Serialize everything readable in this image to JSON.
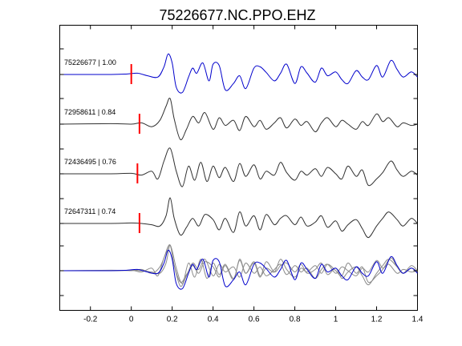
{
  "chart_data": {
    "type": "line",
    "title": "75226677.NC.PPO.EHZ",
    "xlabel": "",
    "ylabel": "",
    "xlim": [
      -0.35,
      1.4
    ],
    "xticks": [
      "-0.2",
      "0",
      "0.2",
      "0.4",
      "0.6",
      "0.8",
      "1",
      "1.2",
      "1.4"
    ],
    "xtick_values": [
      -0.2,
      0,
      0.2,
      0.4,
      0.6,
      0.8,
      1.0,
      1.2,
      1.4
    ],
    "grid": false,
    "colors": {
      "reference": "#0000cc",
      "trace": "#303030",
      "pick": "#ff0000",
      "overlay": "#8c8c8c"
    },
    "series": [
      {
        "label": "75226677 | 1.00",
        "color": "#0000cc",
        "pick_time": 0.0,
        "x": [
          -0.35,
          -0.1,
          -0.02,
          0.03,
          0.08,
          0.13,
          0.16,
          0.18,
          0.2,
          0.22,
          0.25,
          0.28,
          0.3,
          0.32,
          0.35,
          0.38,
          0.4,
          0.43,
          0.46,
          0.5,
          0.53,
          0.56,
          0.6,
          0.63,
          0.66,
          0.7,
          0.73,
          0.76,
          0.8,
          0.83,
          0.86,
          0.9,
          0.93,
          0.96,
          1.0,
          1.03,
          1.06,
          1.1,
          1.13,
          1.16,
          1.2,
          1.23,
          1.27,
          1.3,
          1.33,
          1.37,
          1.4
        ],
        "y": [
          0.0,
          0.0,
          0.02,
          0.05,
          -0.05,
          -0.1,
          0.3,
          0.8,
          0.45,
          -0.5,
          -0.7,
          -0.1,
          0.25,
          0.05,
          0.45,
          -0.25,
          0.4,
          0.35,
          -0.6,
          -0.35,
          -0.05,
          -0.55,
          0.25,
          0.3,
          0.08,
          -0.25,
          0.05,
          0.4,
          -0.35,
          0.3,
          0.05,
          -0.3,
          0.25,
          -0.05,
          0.1,
          -0.2,
          -0.35,
          0.15,
          -0.1,
          -0.2,
          0.35,
          -0.1,
          0.55,
          0.2,
          -0.1,
          0.1,
          -0.1
        ]
      },
      {
        "label": "72958611 | 0.84",
        "color": "#303030",
        "pick_time": 0.04,
        "x": [
          -0.35,
          -0.1,
          0.0,
          0.05,
          0.1,
          0.14,
          0.17,
          0.19,
          0.21,
          0.24,
          0.27,
          0.3,
          0.33,
          0.36,
          0.4,
          0.43,
          0.46,
          0.5,
          0.53,
          0.56,
          0.6,
          0.63,
          0.66,
          0.7,
          0.73,
          0.76,
          0.8,
          0.83,
          0.86,
          0.9,
          0.93,
          0.96,
          1.0,
          1.03,
          1.06,
          1.1,
          1.13,
          1.16,
          1.2,
          1.23,
          1.26,
          1.3,
          1.33,
          1.37,
          1.4
        ],
        "y": [
          0.0,
          0.02,
          0.0,
          0.05,
          -0.1,
          0.15,
          0.7,
          1.0,
          0.2,
          -0.6,
          -0.2,
          0.3,
          0.05,
          0.45,
          -0.2,
          0.25,
          -0.05,
          0.15,
          -0.25,
          0.3,
          -0.1,
          0.15,
          -0.2,
          0.05,
          0.25,
          -0.15,
          0.2,
          -0.05,
          0.1,
          -0.3,
          0.05,
          0.25,
          -0.1,
          0.15,
          0.0,
          -0.2,
          0.1,
          -0.05,
          0.4,
          0.1,
          0.25,
          -0.1,
          0.05,
          -0.05,
          0.0
        ]
      },
      {
        "label": "72436495 | 0.76",
        "color": "#303030",
        "pick_time": 0.03,
        "x": [
          -0.35,
          -0.1,
          0.0,
          0.05,
          0.1,
          0.13,
          0.16,
          0.19,
          0.22,
          0.25,
          0.28,
          0.31,
          0.34,
          0.37,
          0.4,
          0.43,
          0.46,
          0.5,
          0.53,
          0.56,
          0.6,
          0.63,
          0.66,
          0.7,
          0.73,
          0.76,
          0.8,
          0.83,
          0.86,
          0.9,
          0.93,
          0.96,
          1.0,
          1.03,
          1.06,
          1.1,
          1.13,
          1.16,
          1.2,
          1.23,
          1.27,
          1.3,
          1.33,
          1.37,
          1.4
        ],
        "y": [
          0.0,
          0.0,
          0.02,
          -0.05,
          0.1,
          -0.2,
          0.5,
          1.0,
          0.1,
          -0.5,
          0.3,
          -0.25,
          0.45,
          -0.3,
          0.3,
          -0.15,
          0.25,
          -0.3,
          0.4,
          -0.1,
          0.35,
          -0.2,
          0.1,
          -0.05,
          0.45,
          0.05,
          -0.25,
          0.1,
          -0.05,
          0.2,
          -0.1,
          0.25,
          0.0,
          -0.2,
          0.3,
          -0.1,
          0.15,
          -0.45,
          -0.2,
          0.05,
          0.5,
          0.15,
          -0.1,
          0.1,
          -0.05
        ]
      },
      {
        "label": "72647311 | 0.74",
        "color": "#303030",
        "pick_time": 0.04,
        "x": [
          -0.35,
          -0.1,
          0.0,
          0.05,
          0.1,
          0.14,
          0.17,
          0.19,
          0.21,
          0.24,
          0.27,
          0.3,
          0.33,
          0.36,
          0.4,
          0.43,
          0.46,
          0.5,
          0.53,
          0.56,
          0.6,
          0.63,
          0.66,
          0.7,
          0.73,
          0.76,
          0.8,
          0.83,
          0.86,
          0.9,
          0.93,
          0.96,
          1.0,
          1.03,
          1.06,
          1.1,
          1.13,
          1.16,
          1.2,
          1.23,
          1.26,
          1.3,
          1.33,
          1.37,
          1.4
        ],
        "y": [
          0.0,
          0.0,
          0.02,
          0.0,
          -0.05,
          -0.1,
          0.3,
          1.0,
          0.2,
          -0.45,
          -0.15,
          0.2,
          -0.1,
          0.35,
          0.15,
          -0.25,
          0.2,
          -0.35,
          0.45,
          -0.1,
          0.3,
          -0.25,
          0.35,
          -0.05,
          0.2,
          0.3,
          -0.05,
          0.25,
          -0.1,
          0.05,
          0.3,
          -0.15,
          0.1,
          -0.3,
          -0.05,
          0.15,
          -0.2,
          -0.55,
          -0.1,
          0.2,
          0.45,
          0.15,
          -0.1,
          0.2,
          0.0
        ]
      }
    ]
  }
}
